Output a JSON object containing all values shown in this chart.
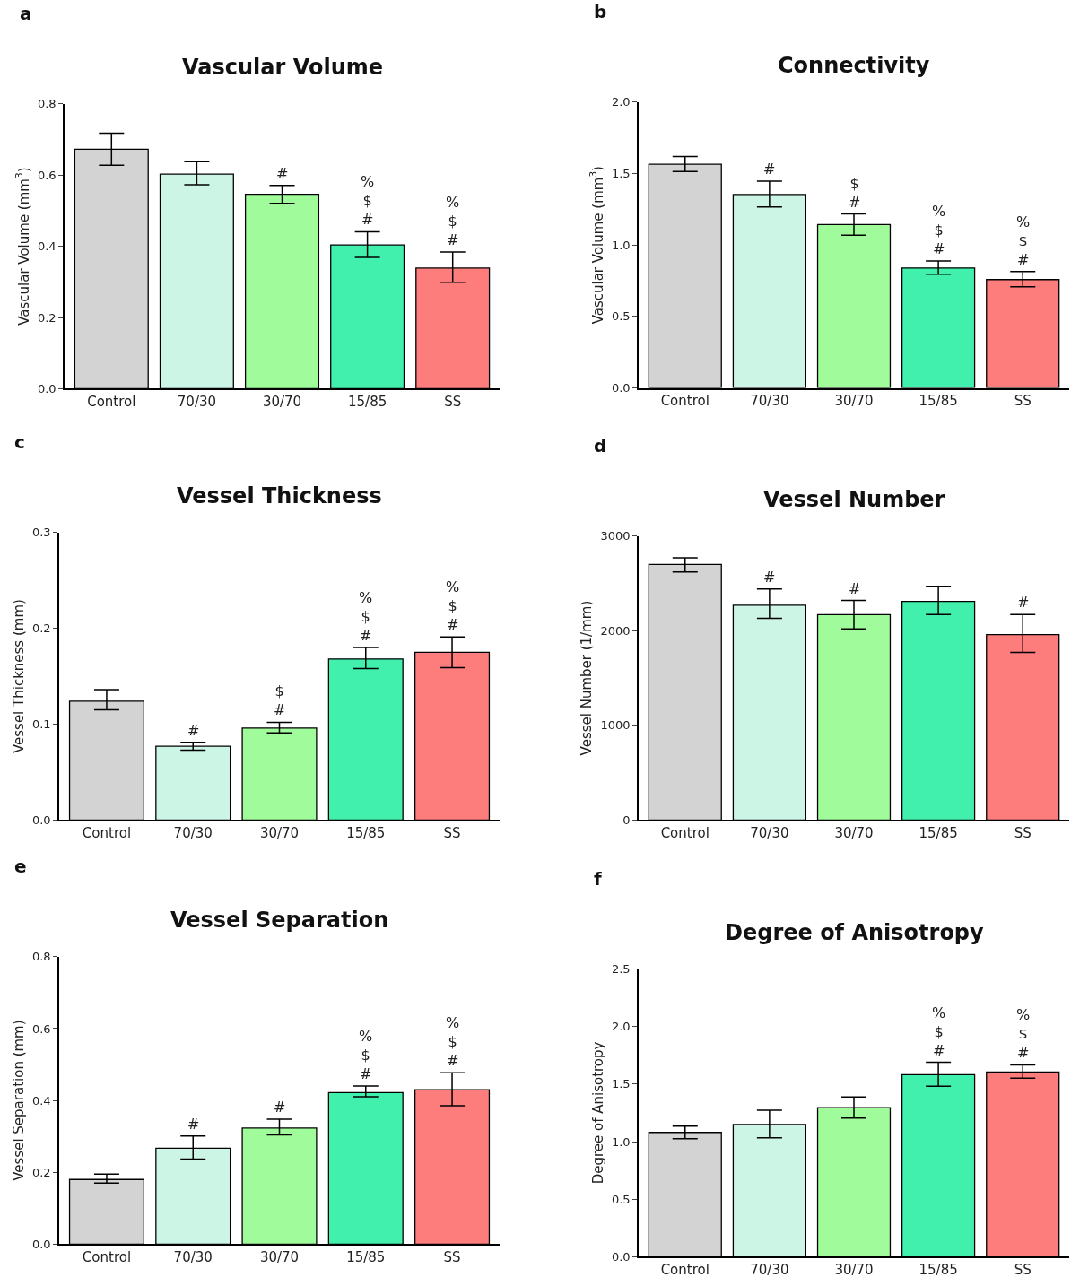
{
  "chart_data": [
    {
      "type": "bar",
      "title": "Vascular Volume",
      "ylabel": "Vascular Volume (mm$^{3}$)",
      "categories": [
        "Control",
        "70/30",
        "30/70",
        "15/85",
        "SS"
      ],
      "colors": [
        "#d3d3d3",
        "#ccf5e6",
        "#a0fc9a",
        "#42f0ad",
        "#fd7d7d"
      ],
      "values": [
        0.673,
        0.603,
        0.546,
        0.404,
        0.339
      ],
      "errors": [
        [
          0.628,
          0.718
        ],
        [
          0.573,
          0.638
        ],
        [
          0.521,
          0.571
        ],
        [
          0.369,
          0.441
        ],
        [
          0.299,
          0.384
        ]
      ],
      "ylim": [
        0,
        0.8
      ],
      "yticks": [
        {
          "value": 0,
          "label": "0.0"
        },
        0.2,
        0.4,
        0.6,
        0.8
      ],
      "annotations": [
        "a",
        {
          "text": "#",
          "x": "30/70",
          "y": 0.571
        },
        {
          "text": "%\n$\n#",
          "x": "15/85",
          "y": 0.441
        },
        {
          "text": "%\n$\n#",
          "x": "SS",
          "y": 0.384
        }
      ]
    },
    {
      "type": "bar",
      "title": "Connectivity",
      "ylabel": "Vascular Volume (mm$^{3}$)",
      "categories": [
        "Control",
        "70/30",
        "30/70",
        "15/85",
        "SS"
      ],
      "colors": [
        "#d3d3d3",
        "#ccf5e6",
        "#a0fc9a",
        "#42f0ad",
        "#fd7d7d"
      ],
      "values": [
        1.565,
        1.354,
        1.143,
        0.839,
        0.758
      ],
      "errors": [
        [
          1.515,
          1.62
        ],
        [
          1.267,
          1.447
        ],
        [
          1.068,
          1.217
        ],
        [
          0.795,
          0.888
        ],
        [
          0.708,
          0.814
        ]
      ],
      "ylim": [
        0,
        2.0
      ],
      "yticks": [
        {
          "value": 0,
          "label": "0.0"
        },
        0.5,
        {
          "value": 1,
          "label": "1.0"
        },
        1.5,
        {
          "value": 2,
          "label": "2.0"
        }
      ],
      "annotations": [
        "b",
        {
          "text": "#",
          "x": "70/30",
          "y": 1.447
        },
        {
          "text": "$\n#",
          "x": "30/70",
          "y": 1.217
        },
        {
          "text": "%\n$\n#",
          "x": "15/85",
          "y": 0.888
        },
        {
          "text": "%\n$\n#",
          "x": "SS",
          "y": 0.814
        }
      ]
    },
    {
      "type": "bar",
      "title": "Vessel Thickness",
      "ylabel": "Vessel Thickness (mm)",
      "categories": [
        "Control",
        "70/30",
        "30/70",
        "15/85",
        "SS"
      ],
      "colors": [
        "#d3d3d3",
        "#ccf5e6",
        "#a0fc9a",
        "#42f0ad",
        "#fd7d7d"
      ],
      "values": [
        0.124,
        0.077,
        0.096,
        0.168,
        0.175
      ],
      "errors": [
        [
          0.115,
          0.136
        ],
        [
          0.073,
          0.081
        ],
        [
          0.091,
          0.102
        ],
        [
          0.158,
          0.18
        ],
        [
          0.159,
          0.191
        ]
      ],
      "ylim": [
        0,
        0.3
      ],
      "yticks": [
        {
          "value": 0,
          "label": "0.0"
        },
        0.1,
        0.2,
        0.3
      ],
      "annotations": [
        "c",
        {
          "text": "#",
          "x": "70/30",
          "y": 0.081
        },
        {
          "text": "$\n#",
          "x": "30/70",
          "y": 0.102
        },
        {
          "text": "%\n$\n#",
          "x": "15/85",
          "y": 0.18
        },
        {
          "text": "%\n$\n#",
          "x": "SS",
          "y": 0.191
        }
      ]
    },
    {
      "type": "bar",
      "title": "Vessel Number",
      "ylabel": "Vessel Number (1/mm)",
      "categories": [
        "Control",
        "70/30",
        "30/70",
        "15/85",
        "SS"
      ],
      "colors": [
        "#d3d3d3",
        "#ccf5e6",
        "#a0fc9a",
        "#42f0ad",
        "#fd7d7d"
      ],
      "values": [
        2700,
        2270,
        2170,
        2310,
        1960
      ],
      "errors": [
        [
          2620,
          2770
        ],
        [
          2130,
          2440
        ],
        [
          2020,
          2320
        ],
        [
          2170,
          2470
        ],
        [
          1770,
          2170
        ]
      ],
      "ylim": [
        0,
        3000
      ],
      "yticks": [
        0,
        1000,
        2000,
        3000
      ],
      "annotations": [
        "d",
        {
          "text": "#",
          "x": "70/30",
          "y": 2440
        },
        {
          "text": "#",
          "x": "30/70",
          "y": 2320
        },
        {
          "text": "#",
          "x": "SS",
          "y": 2170
        }
      ]
    },
    {
      "type": "bar",
      "title": "Vessel Separation",
      "ylabel": "Vessel Separation (mm)",
      "categories": [
        "Control",
        "70/30",
        "30/70",
        "15/85",
        "SS"
      ],
      "colors": [
        "#d3d3d3",
        "#ccf5e6",
        "#a0fc9a",
        "#42f0ad",
        "#fd7d7d"
      ],
      "values": [
        0.18,
        0.267,
        0.323,
        0.422,
        0.43
      ],
      "errors": [
        [
          0.17,
          0.195
        ],
        [
          0.237,
          0.301
        ],
        [
          0.304,
          0.348
        ],
        [
          0.41,
          0.44
        ],
        [
          0.385,
          0.477
        ]
      ],
      "ylim": [
        0,
        0.8
      ],
      "yticks": [
        {
          "value": 0,
          "label": "0.0"
        },
        0.2,
        0.4,
        0.6,
        0.8
      ],
      "annotations": [
        "e",
        {
          "text": "#",
          "x": "70/30",
          "y": 0.301
        },
        {
          "text": "#",
          "x": "30/70",
          "y": 0.348
        },
        {
          "text": "%\n$\n#",
          "x": "15/85",
          "y": 0.44
        },
        {
          "text": "%\n$\n#",
          "x": "SS",
          "y": 0.477
        }
      ]
    },
    {
      "type": "bar",
      "title": "Degree of Anisotropy",
      "ylabel": "Degree of Anisotropy",
      "categories": [
        "Control",
        "70/30",
        "30/70",
        "15/85",
        "SS"
      ],
      "colors": [
        "#d3d3d3",
        "#ccf5e6",
        "#a0fc9a",
        "#42f0ad",
        "#fd7d7d"
      ],
      "values": [
        1.08,
        1.15,
        1.296,
        1.582,
        1.605
      ],
      "errors": [
        [
          1.026,
          1.134
        ],
        [
          1.034,
          1.273
        ],
        [
          1.204,
          1.389
        ],
        [
          1.481,
          1.69
        ],
        [
          1.551,
          1.667
        ]
      ],
      "ylim": [
        0,
        2.5
      ],
      "yticks": [
        {
          "value": 0,
          "label": "0.0"
        },
        0.5,
        {
          "value": 1,
          "label": "1.0"
        },
        1.5,
        {
          "value": 2,
          "label": "2.0"
        },
        2.5
      ],
      "annotations": [
        "f",
        {
          "text": "%\n$\n#",
          "x": "15/85",
          "y": 1.69
        },
        {
          "text": "%\n$\n#",
          "x": "SS",
          "y": 1.667
        }
      ]
    }
  ]
}
